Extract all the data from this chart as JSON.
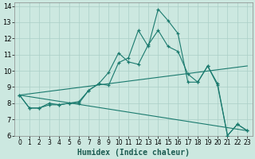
{
  "xlabel": "Humidex (Indice chaleur)",
  "xlim": [
    -0.5,
    23.5
  ],
  "ylim": [
    6,
    14.2
  ],
  "yticks": [
    6,
    7,
    8,
    9,
    10,
    11,
    12,
    13,
    14
  ],
  "xticks": [
    0,
    1,
    2,
    3,
    4,
    5,
    6,
    7,
    8,
    9,
    10,
    11,
    12,
    13,
    14,
    15,
    16,
    17,
    18,
    19,
    20,
    21,
    22,
    23
  ],
  "bg_color": "#cce8e0",
  "grid_color": "#aacfc7",
  "line_color": "#1a7a6e",
  "line1": {
    "x": [
      0,
      1,
      2,
      3,
      4,
      5,
      6,
      7,
      8,
      9,
      10,
      11,
      12,
      13,
      14,
      15,
      16,
      17,
      18,
      19,
      20,
      21,
      22,
      23
    ],
    "y": [
      8.5,
      7.7,
      7.7,
      7.9,
      7.9,
      8.0,
      8.1,
      8.8,
      9.2,
      9.9,
      11.1,
      10.55,
      10.4,
      11.6,
      12.5,
      11.5,
      11.2,
      9.8,
      9.3,
      10.3,
      9.1,
      6.0,
      6.7,
      6.3
    ]
  },
  "line2": {
    "x": [
      0,
      1,
      2,
      3,
      4,
      5,
      6,
      7,
      8,
      9,
      10,
      11,
      12,
      13,
      14,
      15,
      16,
      17,
      18,
      19,
      20,
      21,
      22,
      23
    ],
    "y": [
      8.5,
      7.7,
      7.7,
      8.0,
      7.9,
      8.0,
      8.0,
      8.8,
      9.2,
      9.1,
      10.5,
      10.8,
      12.5,
      11.5,
      13.8,
      13.1,
      12.3,
      9.3,
      9.3,
      10.3,
      9.2,
      6.0,
      6.7,
      6.3
    ]
  },
  "line3": {
    "x": [
      0,
      23
    ],
    "y": [
      8.5,
      10.3
    ]
  },
  "line4": {
    "x": [
      0,
      23
    ],
    "y": [
      8.5,
      6.3
    ]
  }
}
